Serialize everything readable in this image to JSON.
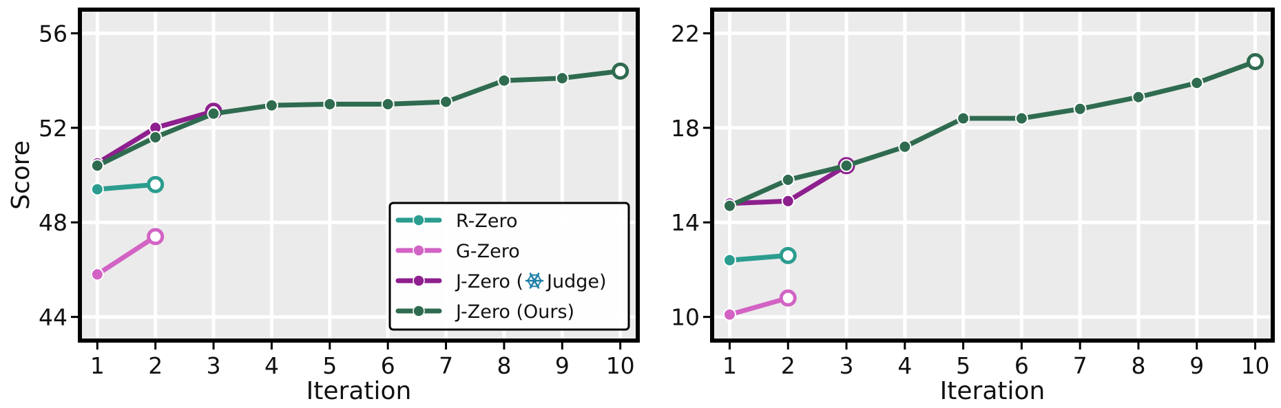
{
  "colors": {
    "plot_bg": "#ebebeb",
    "grid": "#ffffff",
    "frame": "#000000",
    "R-Zero": "#2a9d8f",
    "G-Zero": "#d263c4",
    "J-Zero (Judge)": "#8e1f8e",
    "J-Zero (Ours)": "#2f6b4f"
  },
  "legend": {
    "placement": "lower-right of left panel",
    "entries": [
      {
        "label": "R-Zero",
        "color": "#2a9d8f"
      },
      {
        "label": "G-Zero",
        "color": "#d263c4"
      },
      {
        "label": "J-Zero (",
        "icon": "snowflake-icon",
        "label_after_icon": "Judge)",
        "color": "#8e1f8e"
      },
      {
        "label": "J-Zero (Ours)",
        "color": "#2f6b4f"
      }
    ]
  },
  "chart_data": [
    {
      "type": "line",
      "xlabel": "Iteration",
      "ylabel": "Score",
      "x_ticks": [
        1,
        2,
        3,
        4,
        5,
        6,
        7,
        8,
        9,
        10
      ],
      "y_ticks": [
        44,
        48,
        52,
        56
      ],
      "ylim": [
        43.0,
        57.0
      ],
      "xlim": [
        0.7,
        10.3
      ],
      "grid": true,
      "last_point_hollow": true,
      "series": [
        {
          "name": "R-Zero",
          "x": [
            1,
            2
          ],
          "values": [
            49.4,
            49.6
          ]
        },
        {
          "name": "G-Zero",
          "x": [
            1,
            2
          ],
          "values": [
            45.8,
            47.4
          ]
        },
        {
          "name": "J-Zero (Judge)",
          "x": [
            1,
            2,
            3
          ],
          "values": [
            50.5,
            52.0,
            52.7
          ]
        },
        {
          "name": "J-Zero (Ours)",
          "x": [
            1,
            2,
            3,
            4,
            5,
            6,
            7,
            8,
            9,
            10
          ],
          "values": [
            50.4,
            51.6,
            52.6,
            52.95,
            53.0,
            53.0,
            53.1,
            54.0,
            54.1,
            54.4
          ]
        }
      ]
    },
    {
      "type": "line",
      "xlabel": "Iteration",
      "ylabel": "",
      "x_ticks": [
        1,
        2,
        3,
        4,
        5,
        6,
        7,
        8,
        9,
        10
      ],
      "y_ticks": [
        10,
        14,
        18,
        22
      ],
      "ylim": [
        9.0,
        23.0
      ],
      "xlim": [
        0.7,
        10.3
      ],
      "grid": true,
      "last_point_hollow": true,
      "series": [
        {
          "name": "R-Zero",
          "x": [
            1,
            2
          ],
          "values": [
            12.4,
            12.6
          ]
        },
        {
          "name": "G-Zero",
          "x": [
            1,
            2
          ],
          "values": [
            10.1,
            10.8
          ]
        },
        {
          "name": "J-Zero (Judge)",
          "x": [
            1,
            2,
            3
          ],
          "values": [
            14.8,
            14.9,
            16.4
          ]
        },
        {
          "name": "J-Zero (Ours)",
          "x": [
            1,
            2,
            3,
            4,
            5,
            6,
            7,
            8,
            9,
            10
          ],
          "values": [
            14.7,
            15.8,
            16.4,
            17.2,
            18.4,
            18.4,
            18.8,
            19.3,
            19.9,
            20.8
          ]
        }
      ]
    }
  ]
}
